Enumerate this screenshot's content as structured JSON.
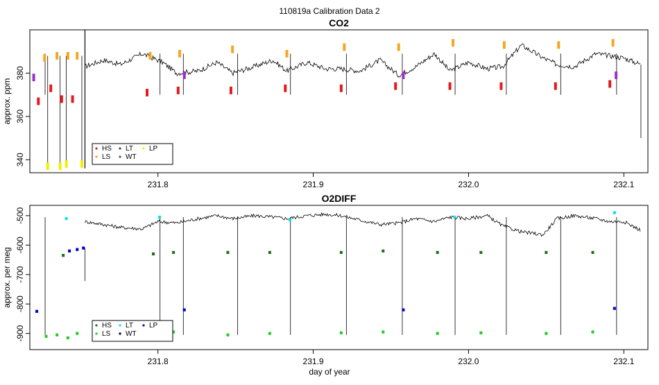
{
  "figure_title": "110819a   Calibration Data 2",
  "xlabel": "day of year",
  "colors": {
    "HS": "#e41a1c",
    "LS": "#f5a623",
    "LT": "#444444",
    "WT": "#555555",
    "LP": "#f0f000",
    "purple": "#9932cc",
    "darkgreen": "#1b6e1b",
    "green": "#22cc22",
    "blue": "#0000cc",
    "cyan": "#00e5ee",
    "trace": "#000000"
  },
  "chart_data": [
    {
      "type": "line",
      "title": "CO2",
      "ylabel": "approx. ppm",
      "xlim": [
        231.7175,
        232.1155
      ],
      "ylim": [
        334,
        400
      ],
      "xticks": [
        231.8,
        231.9,
        232.0,
        232.1
      ],
      "xtick_labels": [
        "231.8",
        "231.9",
        "232.0",
        "232.1"
      ],
      "yticks": [
        340,
        360,
        380
      ],
      "ytick_labels": [
        "340",
        "360",
        "380"
      ],
      "legend": [
        "HS",
        "LS",
        "LT",
        "WT",
        "LP"
      ],
      "legend_position": "bottom-left",
      "trace": [
        [
          231.753,
          383
        ],
        [
          231.765,
          386
        ],
        [
          231.776,
          384
        ],
        [
          231.79,
          389
        ],
        [
          231.803,
          385
        ],
        [
          231.812,
          380
        ],
        [
          231.826,
          381
        ],
        [
          231.838,
          385
        ],
        [
          231.848,
          380
        ],
        [
          231.862,
          383
        ],
        [
          231.874,
          386
        ],
        [
          231.883,
          381
        ],
        [
          231.896,
          385
        ],
        [
          231.908,
          382
        ],
        [
          231.918,
          382
        ],
        [
          231.93,
          381
        ],
        [
          231.943,
          386
        ],
        [
          231.955,
          379
        ],
        [
          231.966,
          383
        ],
        [
          231.978,
          389
        ],
        [
          231.988,
          381
        ],
        [
          232.0,
          385
        ],
        [
          232.012,
          382
        ],
        [
          232.022,
          383
        ],
        [
          232.034,
          393
        ],
        [
          232.048,
          387
        ],
        [
          232.057,
          384
        ],
        [
          232.068,
          383
        ],
        [
          232.082,
          389
        ],
        [
          232.091,
          388
        ],
        [
          232.1,
          387
        ],
        [
          232.111,
          384
        ]
      ],
      "cal_cycles": [
        231.726,
        231.8,
        231.815,
        231.85,
        231.884,
        231.92,
        231.956,
        231.99,
        232.023,
        232.058,
        232.094
      ],
      "markers": [
        {
          "group": "LS",
          "x": [
            231.727,
            231.735,
            231.742,
            231.748,
            231.795,
            231.814,
            231.848,
            231.883,
            231.92,
            231.955,
            231.99,
            232.023,
            232.058,
            232.093
          ],
          "y": [
            387,
            388,
            388,
            388,
            388,
            389,
            391,
            389,
            392,
            392,
            394,
            393,
            393,
            394
          ]
        },
        {
          "group": "HS",
          "x": [
            231.723,
            231.731,
            231.738,
            231.745,
            231.793,
            231.813,
            231.847,
            231.882,
            231.918,
            231.953,
            231.988,
            232.021,
            232.056,
            232.091
          ],
          "y": [
            367,
            373,
            368,
            368,
            371,
            372,
            372,
            373,
            373,
            374,
            374,
            374,
            374,
            375
          ]
        },
        {
          "group": "LP",
          "x": [
            231.729,
            231.737,
            231.741,
            231.751
          ],
          "y": [
            337,
            337,
            338,
            338
          ]
        },
        {
          "group": "purple",
          "x": [
            231.72,
            231.817,
            231.958,
            232.095
          ],
          "y": [
            378,
            379,
            379,
            379
          ]
        }
      ]
    },
    {
      "type": "line",
      "title": "O2DIFF",
      "ylabel": "approx. per meg",
      "xlim": [
        231.7175,
        232.1155
      ],
      "ylim": [
        -955,
        -465
      ],
      "xticks": [
        231.8,
        231.9,
        232.0,
        232.1
      ],
      "xtick_labels": [
        "231.8",
        "231.9",
        "232.0",
        "232.1"
      ],
      "yticks": [
        -900,
        -800,
        -700,
        -600,
        -500
      ],
      "ytick_labels": [
        "-900",
        "-800",
        "-700",
        "-600",
        "-500"
      ],
      "legend": [
        "HS",
        "LS",
        "LT",
        "WT",
        "LP"
      ],
      "legend_position": "bottom-left",
      "trace": [
        [
          231.753,
          -520
        ],
        [
          231.765,
          -530
        ],
        [
          231.776,
          -540
        ],
        [
          231.79,
          -545
        ],
        [
          231.8,
          -520
        ],
        [
          231.812,
          -525
        ],
        [
          231.826,
          -510
        ],
        [
          231.838,
          -500
        ],
        [
          231.848,
          -510
        ],
        [
          231.862,
          -500
        ],
        [
          231.874,
          -505
        ],
        [
          231.883,
          -510
        ],
        [
          231.896,
          -500
        ],
        [
          231.908,
          -495
        ],
        [
          231.918,
          -500
        ],
        [
          231.93,
          -515
        ],
        [
          231.943,
          -530
        ],
        [
          231.955,
          -525
        ],
        [
          231.966,
          -510
        ],
        [
          231.978,
          -520
        ],
        [
          231.988,
          -505
        ],
        [
          232.0,
          -510
        ],
        [
          232.012,
          -500
        ],
        [
          232.022,
          -535
        ],
        [
          232.034,
          -555
        ],
        [
          232.048,
          -565
        ],
        [
          232.057,
          -510
        ],
        [
          232.068,
          -500
        ],
        [
          232.082,
          -510
        ],
        [
          232.091,
          -520
        ],
        [
          232.1,
          -520
        ],
        [
          232.111,
          -550
        ]
      ],
      "cal_cycles": [
        231.726,
        231.8,
        231.815,
        231.85,
        231.884,
        231.92,
        231.956,
        231.99,
        232.023,
        232.058,
        232.094
      ],
      "markers": [
        {
          "group": "cyan",
          "x": [
            231.741,
            231.801,
            231.885,
            231.991,
            232.094
          ],
          "y": [
            -510,
            -505,
            -515,
            -505,
            -490
          ]
        },
        {
          "group": "darkgreen",
          "x": [
            231.739,
            231.797,
            231.81,
            231.845,
            231.872,
            231.918,
            231.945,
            231.98,
            232.008,
            232.05,
            232.08
          ],
          "y": [
            -635,
            -630,
            -625,
            -625,
            -625,
            -625,
            -620,
            -625,
            -625,
            -625,
            -625
          ]
        },
        {
          "group": "blue",
          "x": [
            231.722,
            231.743,
            231.748,
            231.752,
            231.817,
            231.958,
            232.094
          ],
          "y": [
            -825,
            -620,
            -615,
            -610,
            -820,
            -820,
            -815
          ]
        },
        {
          "group": "green",
          "x": [
            231.728,
            231.735,
            231.742,
            231.748,
            231.81,
            231.845,
            231.872,
            231.918,
            231.945,
            231.98,
            232.008,
            232.05,
            232.08
          ],
          "y": [
            -910,
            -905,
            -915,
            -900,
            -895,
            -905,
            -900,
            -898,
            -895,
            -900,
            -898,
            -900,
            -895
          ]
        }
      ]
    }
  ]
}
